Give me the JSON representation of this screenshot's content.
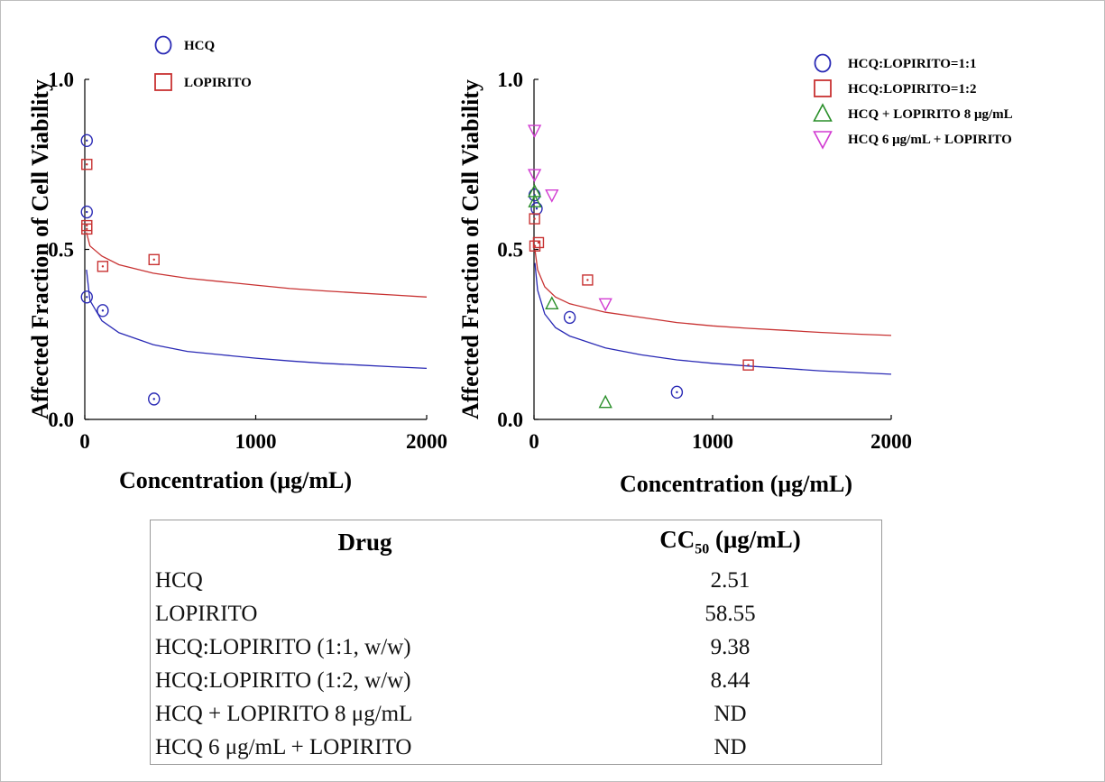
{
  "chart_data": [
    {
      "type": "scatter",
      "xlabel": "Concentration (μg/mL)",
      "ylabel": "Affected Fraction of Cell Viability",
      "xlim": [
        0,
        2000
      ],
      "ylim": [
        0,
        1.0
      ],
      "x_ticks": [
        "0",
        "1000",
        "2000"
      ],
      "y_ticks": [
        "0.0",
        "0.5",
        "1.0"
      ],
      "legend_position": "top-left",
      "series": [
        {
          "name": "HCQ",
          "marker": "circle",
          "color": "#2a2ab5",
          "points": [
            [
              12,
              0.82
            ],
            [
              12,
              0.61
            ],
            [
              12,
              0.36
            ],
            [
              105,
              0.32
            ],
            [
              405,
              0.06
            ]
          ],
          "fit_curve": [
            [
              10,
              0.44
            ],
            [
              30,
              0.35
            ],
            [
              100,
              0.29
            ],
            [
              200,
              0.255
            ],
            [
              400,
              0.22
            ],
            [
              600,
              0.2
            ],
            [
              800,
              0.19
            ],
            [
              1000,
              0.18
            ],
            [
              1200,
              0.172
            ],
            [
              1400,
              0.165
            ],
            [
              1600,
              0.16
            ],
            [
              1800,
              0.155
            ],
            [
              2000,
              0.15
            ]
          ]
        },
        {
          "name": "LOPIRITO",
          "marker": "square",
          "color": "#c83232",
          "points": [
            [
              12,
              0.75
            ],
            [
              12,
              0.57
            ],
            [
              12,
              0.56
            ],
            [
              105,
              0.45
            ],
            [
              405,
              0.47
            ]
          ],
          "fit_curve": [
            [
              10,
              0.55
            ],
            [
              30,
              0.51
            ],
            [
              100,
              0.48
            ],
            [
              200,
              0.455
            ],
            [
              400,
              0.43
            ],
            [
              600,
              0.415
            ],
            [
              800,
              0.405
            ],
            [
              1000,
              0.395
            ],
            [
              1200,
              0.385
            ],
            [
              1400,
              0.378
            ],
            [
              1600,
              0.372
            ],
            [
              1800,
              0.366
            ],
            [
              2000,
              0.36
            ]
          ]
        }
      ]
    },
    {
      "type": "scatter",
      "xlabel": "Concentration (μg/mL)",
      "ylabel": "Affected Fraction of Cell Viability",
      "xlim": [
        0,
        2000
      ],
      "ylim": [
        0,
        1.0
      ],
      "x_ticks": [
        "0",
        "1000",
        "2000"
      ],
      "y_ticks": [
        "0.0",
        "0.5",
        "1.0"
      ],
      "legend_position": "top-right",
      "series": [
        {
          "name": "HCQ:LOPIRITO=1:1",
          "marker": "circle",
          "color": "#2a2ab5",
          "points": [
            [
              3,
              0.66
            ],
            [
              15,
              0.62
            ],
            [
              200,
              0.3
            ],
            [
              800,
              0.08
            ]
          ],
          "fit_curve": [
            [
              5,
              0.46
            ],
            [
              20,
              0.38
            ],
            [
              60,
              0.31
            ],
            [
              120,
              0.27
            ],
            [
              200,
              0.245
            ],
            [
              400,
              0.21
            ],
            [
              600,
              0.19
            ],
            [
              800,
              0.175
            ],
            [
              1000,
              0.165
            ],
            [
              1200,
              0.157
            ],
            [
              1400,
              0.15
            ],
            [
              1600,
              0.143
            ],
            [
              1800,
              0.138
            ],
            [
              2000,
              0.133
            ]
          ]
        },
        {
          "name": "HCQ:LOPIRITO=1:2",
          "marker": "square",
          "color": "#c83232",
          "points": [
            [
              3,
              0.59
            ],
            [
              5,
              0.51
            ],
            [
              25,
              0.52
            ],
            [
              300,
              0.41
            ],
            [
              1200,
              0.16
            ]
          ],
          "fit_curve": [
            [
              5,
              0.5
            ],
            [
              20,
              0.44
            ],
            [
              60,
              0.39
            ],
            [
              120,
              0.36
            ],
            [
              200,
              0.34
            ],
            [
              400,
              0.315
            ],
            [
              600,
              0.3
            ],
            [
              800,
              0.285
            ],
            [
              1000,
              0.275
            ],
            [
              1200,
              0.268
            ],
            [
              1400,
              0.262
            ],
            [
              1600,
              0.256
            ],
            [
              1800,
              0.251
            ],
            [
              2000,
              0.247
            ]
          ]
        },
        {
          "name": "HCQ + LOPIRITO 8 μg/mL",
          "marker": "triangle-up",
          "color": "#2a8f2a",
          "points": [
            [
              3,
              0.67
            ],
            [
              5,
              0.64
            ],
            [
              100,
              0.34
            ],
            [
              400,
              0.05
            ]
          ]
        },
        {
          "name": "HCQ 6 μg/mL + LOPIRITO",
          "marker": "triangle-down",
          "color": "#d23cd2",
          "points": [
            [
              3,
              0.85
            ],
            [
              3,
              0.72
            ],
            [
              100,
              0.66
            ],
            [
              400,
              0.34
            ]
          ]
        }
      ]
    }
  ],
  "table": {
    "header_drug": "Drug",
    "header_cc_main": "CC",
    "header_cc_sub": "50",
    "header_cc_unit": " (μg/mL)",
    "rows": [
      {
        "drug": "HCQ",
        "cc50": "2.51"
      },
      {
        "drug": "LOPIRITO",
        "cc50": "58.55"
      },
      {
        "drug": "HCQ:LOPIRITO (1:1, w/w)",
        "cc50": "9.38"
      },
      {
        "drug": "HCQ:LOPIRITO (1:2, w/w)",
        "cc50": "8.44"
      },
      {
        "drug": "HCQ + LOPIRITO 8 μg/mL",
        "cc50": "ND"
      },
      {
        "drug": "HCQ 6 μg/mL + LOPIRITO",
        "cc50": "ND"
      }
    ]
  }
}
